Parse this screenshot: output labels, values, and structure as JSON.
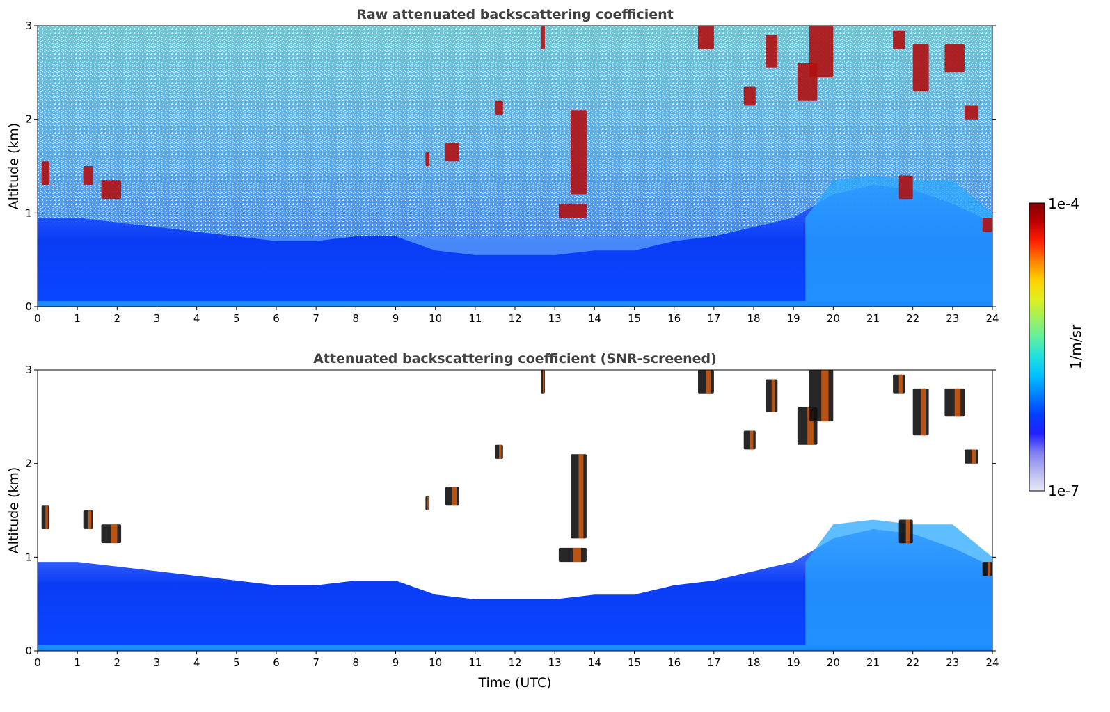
{
  "chart_data": [
    {
      "type": "heatmap",
      "title": "Raw attenuated backscattering coefficient",
      "xlabel": "",
      "ylabel": "Altitude (km)",
      "xlim": [
        0,
        24
      ],
      "ylim": [
        0,
        3
      ],
      "xticks": [
        "0",
        "1",
        "2",
        "3",
        "4",
        "5",
        "6",
        "7",
        "8",
        "9",
        "10",
        "11",
        "12",
        "13",
        "14",
        "15",
        "16",
        "17",
        "18",
        "19",
        "20",
        "21",
        "22",
        "23",
        "24"
      ],
      "yticks": [
        "0",
        "1",
        "2",
        "3"
      ],
      "boundary_layer_top_km": [
        [
          0,
          0.95
        ],
        [
          1,
          0.95
        ],
        [
          2,
          0.9
        ],
        [
          3,
          0.85
        ],
        [
          4,
          0.8
        ],
        [
          5,
          0.75
        ],
        [
          6,
          0.7
        ],
        [
          7,
          0.7
        ],
        [
          8,
          0.75
        ],
        [
          9,
          0.75
        ],
        [
          10,
          0.6
        ],
        [
          11,
          0.55
        ],
        [
          12,
          0.55
        ],
        [
          13,
          0.55
        ],
        [
          14,
          0.6
        ],
        [
          15,
          0.6
        ],
        [
          16,
          0.7
        ],
        [
          17,
          0.75
        ],
        [
          18,
          0.85
        ],
        [
          19,
          0.95
        ],
        [
          20,
          1.2
        ],
        [
          21,
          1.3
        ],
        [
          22,
          1.25
        ],
        [
          23,
          1.1
        ],
        [
          24,
          0.9
        ]
      ],
      "cloud_patches": [
        {
          "t": [
            0.1,
            0.3
          ],
          "z": [
            1.3,
            1.55
          ]
        },
        {
          "t": [
            1.15,
            1.4
          ],
          "z": [
            1.3,
            1.5
          ]
        },
        {
          "t": [
            1.6,
            2.1
          ],
          "z": [
            1.15,
            1.35
          ]
        },
        {
          "t": [
            9.75,
            9.85
          ],
          "z": [
            1.5,
            1.65
          ]
        },
        {
          "t": [
            10.25,
            10.6
          ],
          "z": [
            1.55,
            1.75
          ]
        },
        {
          "t": [
            11.5,
            11.7
          ],
          "z": [
            2.05,
            2.2
          ]
        },
        {
          "t": [
            12.65,
            12.75
          ],
          "z": [
            2.75,
            3.0
          ]
        },
        {
          "t": [
            13.1,
            13.8
          ],
          "z": [
            0.95,
            1.1
          ]
        },
        {
          "t": [
            13.4,
            13.8
          ],
          "z": [
            1.2,
            2.1
          ]
        },
        {
          "t": [
            16.6,
            17.0
          ],
          "z": [
            2.75,
            3.0
          ]
        },
        {
          "t": [
            17.75,
            18.05
          ],
          "z": [
            2.15,
            2.35
          ]
        },
        {
          "t": [
            18.3,
            18.6
          ],
          "z": [
            2.55,
            2.9
          ]
        },
        {
          "t": [
            19.1,
            19.6
          ],
          "z": [
            2.2,
            2.6
          ]
        },
        {
          "t": [
            19.4,
            20.0
          ],
          "z": [
            2.45,
            3.0
          ]
        },
        {
          "t": [
            21.5,
            21.8
          ],
          "z": [
            2.75,
            2.95
          ]
        },
        {
          "t": [
            21.65,
            22.0
          ],
          "z": [
            1.15,
            1.4
          ]
        },
        {
          "t": [
            22.0,
            22.4
          ],
          "z": [
            2.3,
            2.8
          ]
        },
        {
          "t": [
            22.8,
            23.3
          ],
          "z": [
            2.5,
            2.8
          ]
        },
        {
          "t": [
            23.3,
            23.65
          ],
          "z": [
            2.0,
            2.15
          ]
        },
        {
          "t": [
            23.75,
            24.0
          ],
          "z": [
            0.8,
            0.95
          ]
        }
      ]
    },
    {
      "type": "heatmap",
      "title": "Attenuated backscattering coefficient (SNR-screened)",
      "xlabel": "Time (UTC)",
      "ylabel": "Altitude (km)",
      "xlim": [
        0,
        24
      ],
      "ylim": [
        0,
        3
      ],
      "xticks": [
        "0",
        "1",
        "2",
        "3",
        "4",
        "5",
        "6",
        "7",
        "8",
        "9",
        "10",
        "11",
        "12",
        "13",
        "14",
        "15",
        "16",
        "17",
        "18",
        "19",
        "20",
        "21",
        "22",
        "23",
        "24"
      ],
      "yticks": [
        "0",
        "1",
        "2",
        "3"
      ]
    }
  ],
  "colorbar": {
    "label": "1/m/sr",
    "top_label": "1e-4",
    "bottom_label": "1e-7",
    "scale": "log",
    "colormap": [
      "#e8e8f8",
      "#b8b8f0",
      "#8080f0",
      "#2020ff",
      "#0040ff",
      "#0080ff",
      "#00c0ff",
      "#20e0e0",
      "#60f0a0",
      "#a0f060",
      "#e0f020",
      "#ffd000",
      "#ff8000",
      "#ff2000",
      "#c00000",
      "#800000"
    ]
  }
}
